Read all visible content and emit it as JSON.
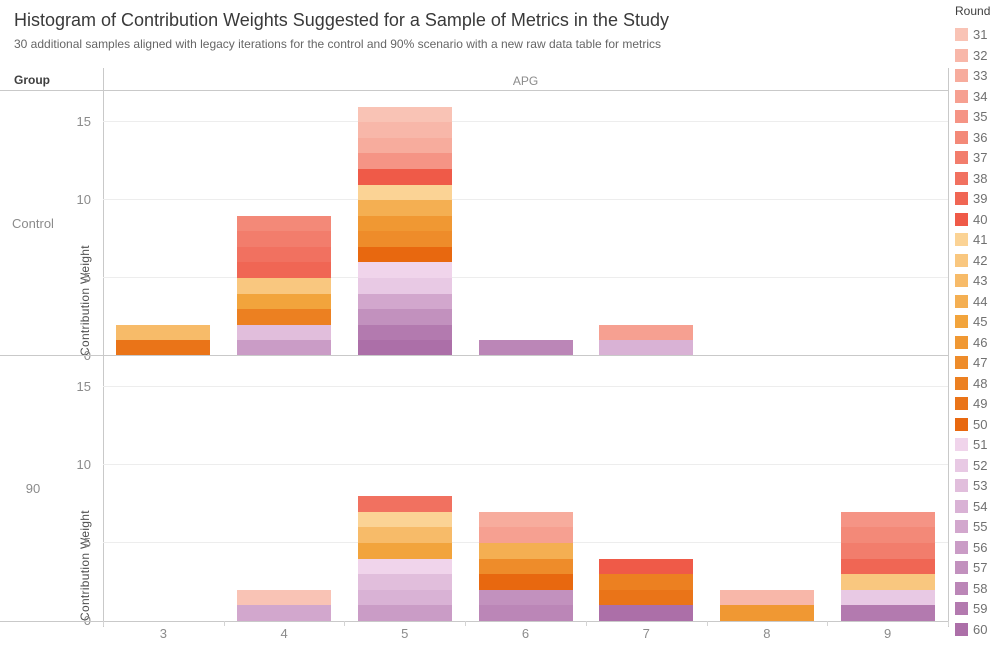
{
  "title": "Histogram of Contribution Weights Suggested for a Sample of Metrics in the Study",
  "subtitle": "30 additional samples aligned with legacy iterations for the control and 90% scenario with a new raw data table for metrics",
  "row_header": "Group",
  "col_header": "APG",
  "legend_title": "Round",
  "chart_data": {
    "type": "bar",
    "stacked": true,
    "title": "Histogram of Contribution Weights Suggested for a Sample of Metrics in the Study",
    "xlabel": "APG",
    "ylabel": "Contribution Weight",
    "categories": [
      "3",
      "4",
      "5",
      "6",
      "7",
      "8",
      "9"
    ],
    "yticks": [
      0,
      5,
      10,
      15
    ],
    "ylim": [
      0,
      17
    ],
    "grid": "horizontal",
    "legend_position": "right",
    "unit_value": 1,
    "rounds": [
      {
        "round": 31,
        "color": "#f9c3b5"
      },
      {
        "round": 32,
        "color": "#f8b7a9"
      },
      {
        "round": 33,
        "color": "#f7ac9d"
      },
      {
        "round": 34,
        "color": "#f6a091"
      },
      {
        "round": 35,
        "color": "#f59485"
      },
      {
        "round": 36,
        "color": "#f38978"
      },
      {
        "round": 37,
        "color": "#f27d6c"
      },
      {
        "round": 38,
        "color": "#f17160"
      },
      {
        "round": 39,
        "color": "#f06654"
      },
      {
        "round": 40,
        "color": "#ef5a48"
      },
      {
        "round": 41,
        "color": "#fbd395"
      },
      {
        "round": 42,
        "color": "#f9c77f"
      },
      {
        "round": 43,
        "color": "#f7bb69"
      },
      {
        "round": 44,
        "color": "#f4af52"
      },
      {
        "round": 45,
        "color": "#f2a43c"
      },
      {
        "round": 46,
        "color": "#f09833"
      },
      {
        "round": 47,
        "color": "#ee8c2a"
      },
      {
        "round": 48,
        "color": "#ec8021"
      },
      {
        "round": 49,
        "color": "#ea7418"
      },
      {
        "round": 50,
        "color": "#e8680f"
      },
      {
        "round": 51,
        "color": "#f0d4eb"
      },
      {
        "round": 52,
        "color": "#e8c9e4"
      },
      {
        "round": 53,
        "color": "#e1bedc"
      },
      {
        "round": 54,
        "color": "#d9b2d5"
      },
      {
        "round": 55,
        "color": "#d2a7cd"
      },
      {
        "round": 56,
        "color": "#ca9cc6"
      },
      {
        "round": 57,
        "color": "#c291be"
      },
      {
        "round": 58,
        "color": "#bb86b7"
      },
      {
        "round": 59,
        "color": "#b37aaf"
      },
      {
        "round": 60,
        "color": "#ac6fa8"
      }
    ],
    "panels": [
      {
        "label": "Control",
        "bar_totals": [
          2,
          9,
          16,
          1,
          2,
          0,
          0
        ],
        "bars": [
          [
            49,
            43
          ],
          [
            56,
            53,
            48,
            45,
            42,
            39,
            38,
            37,
            36
          ],
          [
            60,
            59,
            57,
            55,
            52,
            51,
            50,
            47,
            46,
            44,
            41,
            40,
            35,
            33,
            32,
            31
          ],
          [
            58
          ],
          [
            54,
            34
          ],
          [],
          []
        ]
      },
      {
        "label": "90",
        "bar_totals": [
          0,
          2,
          8,
          7,
          4,
          2,
          7
        ],
        "bars": [
          [],
          [
            55,
            31
          ],
          [
            56,
            54,
            53,
            51,
            45,
            43,
            41,
            38
          ],
          [
            58,
            57,
            50,
            47,
            44,
            34,
            33
          ],
          [
            60,
            49,
            48,
            40
          ],
          [
            46,
            32
          ],
          [
            59,
            52,
            42,
            39,
            37,
            36,
            35
          ]
        ]
      }
    ]
  }
}
